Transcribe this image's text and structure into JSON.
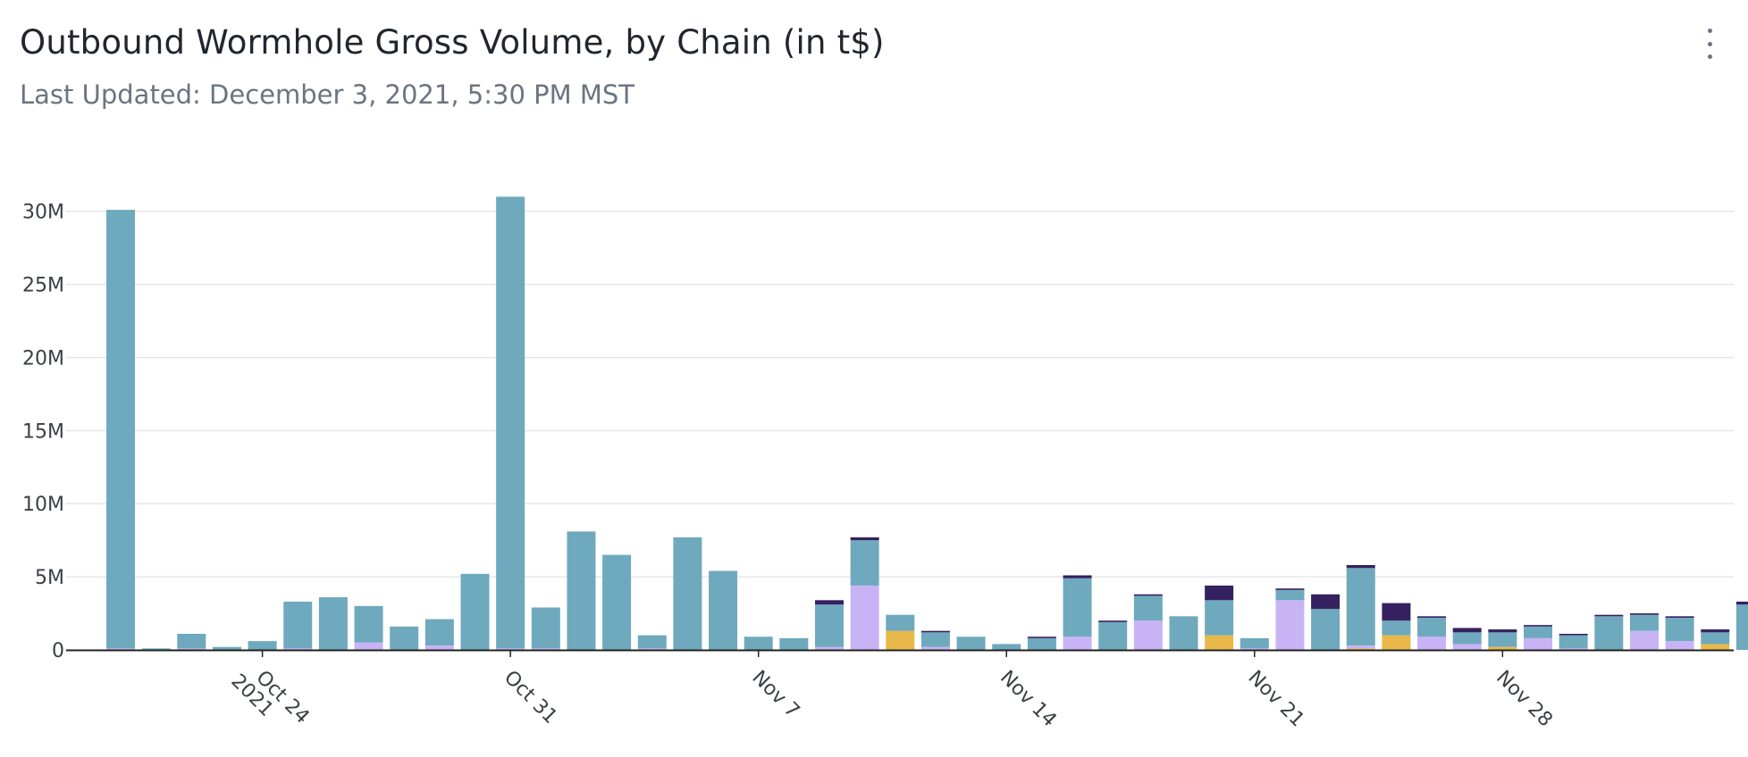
{
  "header": {
    "title": "Outbound Wormhole Gross Volume, by Chain (in t$)",
    "subtitle": "Last Updated: December 3, 2021, 5:30 PM MST",
    "menu_icon": "kebab-menu-icon"
  },
  "colors": {
    "teal": "#6fa9be",
    "lavender": "#c8b4f5",
    "gold": "#e8b94a",
    "navy": "#35215f",
    "grid": "#e6e6e6",
    "axis": "#222222"
  },
  "chart_data": {
    "type": "bar",
    "stacked": true,
    "x_type": "date",
    "x": [
      "2021-10-20",
      "2021-10-21",
      "2021-10-22",
      "2021-10-23",
      "2021-10-24",
      "2021-10-25",
      "2021-10-26",
      "2021-10-27",
      "2021-10-28",
      "2021-10-29",
      "2021-10-30",
      "2021-10-31",
      "2021-11-01",
      "2021-11-02",
      "2021-11-03",
      "2021-11-04",
      "2021-11-05",
      "2021-11-06",
      "2021-11-07",
      "2021-11-08",
      "2021-11-09",
      "2021-11-10",
      "2021-11-11",
      "2021-11-12",
      "2021-11-13",
      "2021-11-14",
      "2021-11-15",
      "2021-11-16",
      "2021-11-17",
      "2021-11-18",
      "2021-11-19",
      "2021-11-20",
      "2021-11-21",
      "2021-11-22",
      "2021-11-23",
      "2021-11-24",
      "2021-11-25",
      "2021-11-26",
      "2021-11-27",
      "2021-11-28",
      "2021-11-29",
      "2021-11-30",
      "2021-12-01",
      "2021-12-02",
      "2021-12-03",
      "2021-12-04",
      "2021-12-05"
    ],
    "series": [
      {
        "color": "#e8b94a",
        "values": [
          0,
          0,
          0,
          0,
          0,
          0,
          0,
          0,
          0,
          0,
          0,
          0,
          0,
          0,
          0,
          0,
          0,
          0,
          0,
          0,
          0,
          0,
          1.3,
          0,
          0,
          0,
          0,
          0,
          0,
          0,
          0,
          1.0,
          0,
          0,
          0,
          0.1,
          1.0,
          0,
          0,
          0.2,
          0,
          0,
          0,
          0,
          0,
          0.4,
          0
        ]
      },
      {
        "color": "#c8b4f5",
        "values": [
          0.1,
          0,
          0.1,
          0,
          0,
          0.1,
          0,
          0.5,
          0,
          0.3,
          0,
          0.1,
          0.1,
          0,
          0,
          0.1,
          0,
          0,
          0,
          0,
          0.2,
          4.4,
          0,
          0.2,
          0,
          0,
          0,
          0.9,
          0,
          2.0,
          0,
          0,
          0.1,
          3.4,
          0,
          0.2,
          0,
          0.9,
          0.4,
          0,
          0.8,
          0.1,
          0,
          1.3,
          0.6,
          0,
          0
        ]
      },
      {
        "color": "#6fa9be",
        "values": [
          30.0,
          0.1,
          1.0,
          0.2,
          0.6,
          3.2,
          3.6,
          2.5,
          1.6,
          1.8,
          5.2,
          30.9,
          2.8,
          8.1,
          6.5,
          0.9,
          7.7,
          5.4,
          0.9,
          0.8,
          2.9,
          3.1,
          1.1,
          1.0,
          0.9,
          0.4,
          0.8,
          4.0,
          1.9,
          1.7,
          2.3,
          2.4,
          0.7,
          0.7,
          2.8,
          5.3,
          1.0,
          1.3,
          0.8,
          1.0,
          0.8,
          0.9,
          2.3,
          1.1,
          1.6,
          0.8,
          3.1
        ]
      },
      {
        "color": "#35215f",
        "values": [
          0,
          0,
          0,
          0,
          0,
          0,
          0,
          0,
          0,
          0,
          0,
          0,
          0,
          0,
          0,
          0,
          0,
          0,
          0,
          0,
          0.3,
          0.2,
          0,
          0.1,
          0,
          0,
          0.1,
          0.2,
          0.1,
          0.1,
          0,
          1.0,
          0,
          0.1,
          1.0,
          0.2,
          1.2,
          0.1,
          0.3,
          0.2,
          0.1,
          0.1,
          0.1,
          0.1,
          0.1,
          0.2,
          0.2
        ]
      }
    ],
    "x_ticks": [
      {
        "date": "2021-10-24",
        "label": "Oct 24",
        "sublabel": "2021"
      },
      {
        "date": "2021-10-31",
        "label": "Oct 31"
      },
      {
        "date": "2021-11-07",
        "label": "Nov 7"
      },
      {
        "date": "2021-11-14",
        "label": "Nov 14"
      },
      {
        "date": "2021-11-21",
        "label": "Nov 21"
      },
      {
        "date": "2021-11-28",
        "label": "Nov 28"
      }
    ],
    "y_ticks": [
      {
        "value": 0,
        "label": "0"
      },
      {
        "value": 5,
        "label": "5M"
      },
      {
        "value": 10,
        "label": "10M"
      },
      {
        "value": 15,
        "label": "15M"
      },
      {
        "value": 20,
        "label": "20M"
      },
      {
        "value": 25,
        "label": "25M"
      },
      {
        "value": 30,
        "label": "30M"
      }
    ],
    "y_unit": "millions",
    "ylim": [
      0,
      30.9
    ],
    "grid": true,
    "legend": "none"
  }
}
